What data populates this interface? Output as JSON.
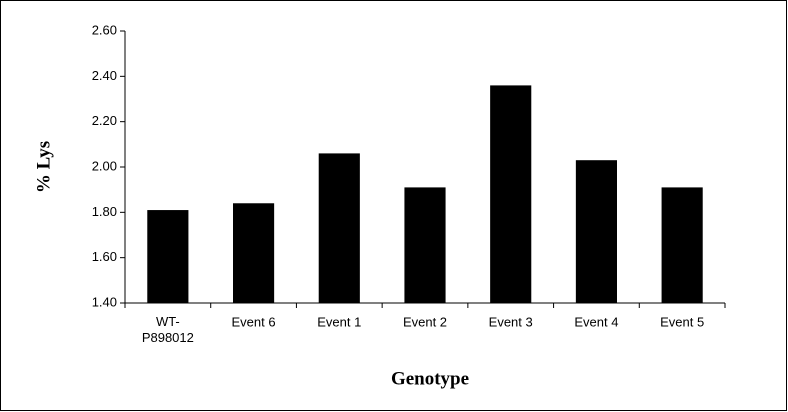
{
  "chart_data": {
    "type": "bar",
    "xlabel": "Genotype",
    "ylabel": "% Lys",
    "categories": [
      "WT-P898012",
      "Event 6",
      "Event 1",
      "Event 2",
      "Event 3",
      "Event 4",
      "Event 5"
    ],
    "values": [
      1.81,
      1.84,
      2.06,
      1.91,
      2.36,
      2.03,
      1.91
    ],
    "color": "#000000",
    "ylim": [
      1.4,
      2.6
    ],
    "yticks": [
      {
        "value": 1.4,
        "label": "1.40"
      },
      {
        "value": 1.6,
        "label": "1.60"
      },
      {
        "value": 1.8,
        "label": "1.80"
      },
      {
        "value": 2.0,
        "label": "2.00"
      },
      {
        "value": 2.2,
        "label": "2.20"
      },
      {
        "value": 2.4,
        "label": "2.40"
      },
      {
        "value": 2.6,
        "label": "2.60"
      }
    ],
    "grid": false
  }
}
